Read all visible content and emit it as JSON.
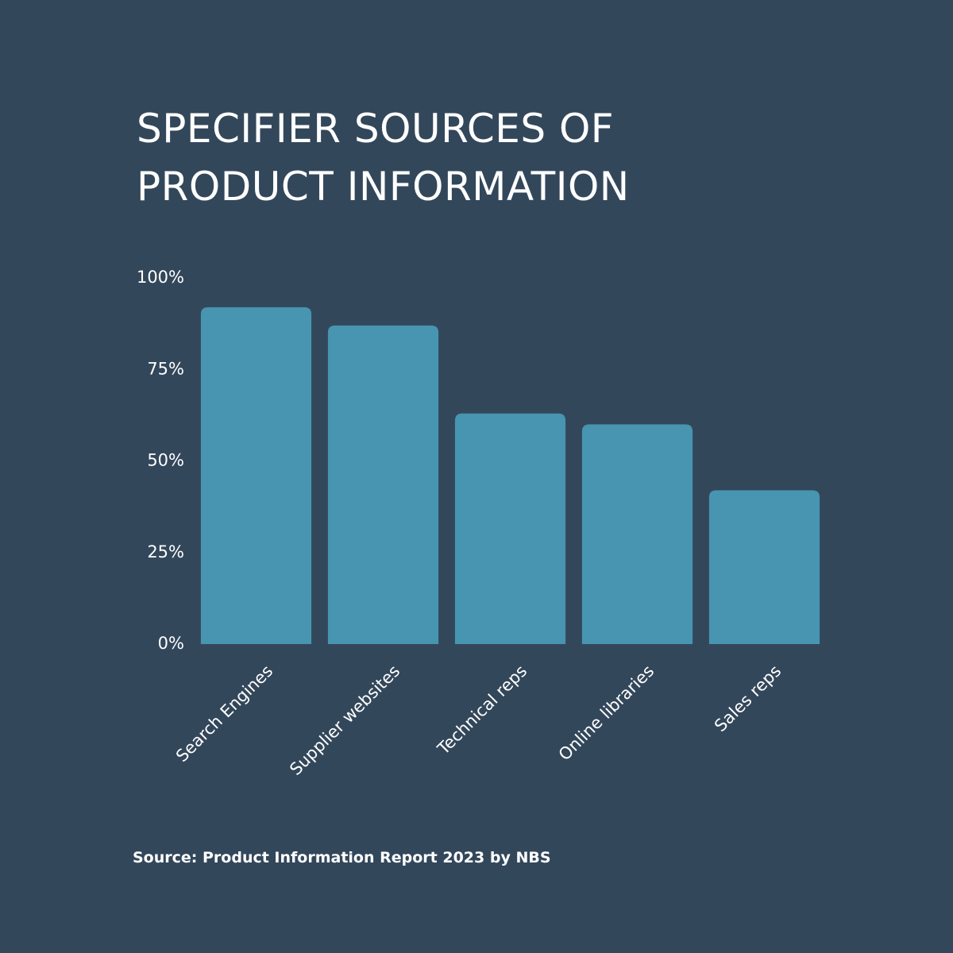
{
  "chart_data": {
    "type": "bar",
    "title": "SPECIFIER SOURCES OF\nPRODUCT INFORMATION",
    "source": "Source: Product Information Report 2023 by NBS",
    "categories": [
      "Search Engines",
      "Supplier websites",
      "Technical reps",
      "Online libraries",
      "Sales reps"
    ],
    "values": [
      92,
      87,
      63,
      60,
      42
    ],
    "color": "#4795b0",
    "ylim": [
      0,
      100
    ],
    "yticks": [
      {
        "value": 0,
        "label": "0%"
      },
      {
        "value": 25,
        "label": "25%"
      },
      {
        "value": 50,
        "label": "50%"
      },
      {
        "value": 75,
        "label": "75%"
      },
      {
        "value": 100,
        "label": "100%"
      }
    ],
    "grid": false
  }
}
